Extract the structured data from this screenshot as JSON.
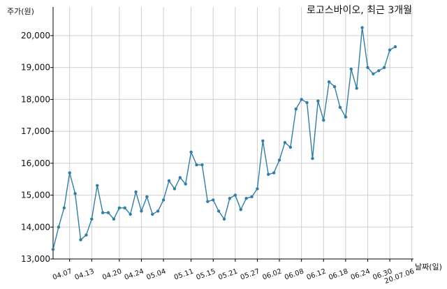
{
  "chart_data": {
    "type": "line",
    "title": "로고스바이오, 최근 3개월",
    "ylabel": "주가(원)",
    "xlabel": "날짜(일)",
    "ylim": [
      13000,
      20500
    ],
    "yticks": [
      13000,
      14000,
      15000,
      16000,
      17000,
      18000,
      19000,
      20000
    ],
    "ytick_labels": [
      "13,000",
      "14,000",
      "15,000",
      "16,000",
      "17,000",
      "18,000",
      "19,000",
      "20,000"
    ],
    "xticks": [
      {
        "label": "04.07",
        "index": 3
      },
      {
        "label": "04.13",
        "index": 7
      },
      {
        "label": "04.20",
        "index": 12
      },
      {
        "label": "04.24",
        "index": 16
      },
      {
        "label": "05.04",
        "index": 20
      },
      {
        "label": "05.11",
        "index": 25
      },
      {
        "label": "05.15",
        "index": 29
      },
      {
        "label": "05.21",
        "index": 33
      },
      {
        "label": "05.27",
        "index": 37
      },
      {
        "label": "06.02",
        "index": 41
      },
      {
        "label": "06.08",
        "index": 45
      },
      {
        "label": "06.12",
        "index": 49
      },
      {
        "label": "06.18",
        "index": 53
      },
      {
        "label": "06.24",
        "index": 57
      },
      {
        "label": "06.30",
        "index": 61
      },
      {
        "label": "20.07.06",
        "index": 65
      }
    ],
    "grid": true,
    "color": "#2e7ea8",
    "series": [
      {
        "values": [
          13300,
          14000,
          14600,
          15700,
          15050,
          13600,
          13750,
          14250,
          15300,
          14450,
          14450,
          14250,
          14600,
          14600,
          14400,
          15100,
          14500,
          14950,
          14400,
          14500,
          14850,
          15450,
          15200,
          15550,
          15350,
          16350,
          15950,
          15950,
          14800,
          14850,
          14500,
          14250,
          14900,
          15000,
          14550,
          14900,
          14950,
          15200,
          16700,
          15650,
          15700,
          16100,
          16650,
          16500,
          17700,
          18000,
          17900,
          16150,
          17950,
          17350,
          18550,
          18400,
          17750,
          17450,
          18950,
          18350,
          20250,
          19000,
          18800,
          18900,
          19000,
          19550,
          19650
        ]
      }
    ]
  }
}
